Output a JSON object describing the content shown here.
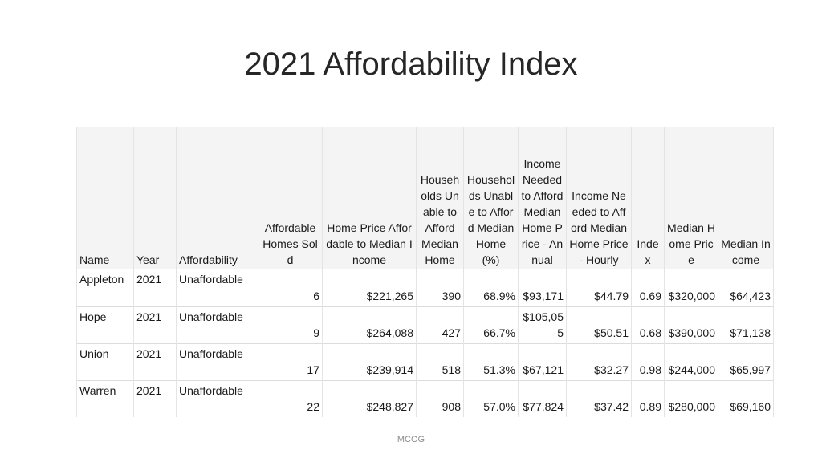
{
  "title": "2021 Affordability Index",
  "footer": "MCOG",
  "table": {
    "headers": [
      "Name",
      "Year",
      "Affordability",
      "Affordable Homes Sold",
      "Home Price Affordable to Median Income",
      "Households Unable to Afford Median Home",
      "Households Unable to Afford Median Home (%)",
      "Income Needed to Afford Median Home Price - Annual",
      "Income Needed to Afford Median Home Price - Hourly",
      "Index",
      "Median Home Price",
      "Median Income"
    ],
    "rows": [
      [
        "Appleton",
        "2021",
        "Unaffordable",
        "6",
        "$221,265",
        "390",
        "68.9%",
        "$93,171",
        "$44.79",
        "0.69",
        "$320,000",
        "$64,423"
      ],
      [
        "Hope",
        "2021",
        "Unaffordable",
        "9",
        "$264,088",
        "427",
        "66.7%",
        "$105,055",
        "$50.51",
        "0.68",
        "$390,000",
        "$71,138"
      ],
      [
        "Union",
        "2021",
        "Unaffordable",
        "17",
        "$239,914",
        "518",
        "51.3%",
        "$67,121",
        "$32.27",
        "0.98",
        "$244,000",
        "$65,997"
      ],
      [
        "Warren",
        "2021",
        "Unaffordable",
        "22",
        "$248,827",
        "908",
        "57.0%",
        "$77,824",
        "$37.42",
        "0.89",
        "$280,000",
        "$69,160"
      ]
    ]
  }
}
